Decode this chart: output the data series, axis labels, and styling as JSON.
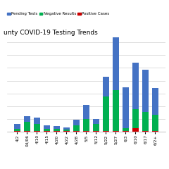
{
  "title": "unty COVID-19 Testing Trends",
  "categories": [
    "4/2",
    "04/06",
    "4/10",
    "4/15",
    "4/20",
    "4/22",
    "4/28",
    "5/5",
    "5/12",
    "5/22",
    "5/27",
    "6/3",
    "6/10",
    "6/17",
    "6/2+"
  ],
  "pending": [
    10,
    12,
    12,
    6,
    5,
    4,
    10,
    28,
    10,
    38,
    155,
    80,
    90,
    82,
    52
  ],
  "negative": [
    5,
    18,
    15,
    5,
    5,
    3,
    12,
    24,
    14,
    68,
    80,
    6,
    38,
    38,
    32
  ],
  "positive": [
    1,
    1,
    1,
    1,
    1,
    1,
    1,
    1,
    1,
    1,
    1,
    1,
    7,
    1,
    1
  ],
  "colors": {
    "pending": "#4472C4",
    "negative": "#00B050",
    "positive": "#CC0000"
  },
  "legend_labels": [
    "Pending Tests",
    "Negative Results",
    "Positive Cases"
  ],
  "background_color": "#FFFFFF",
  "grid_color": "#D0D0D0",
  "ylim": [
    0,
    185
  ],
  "figsize": [
    2.4,
    2.4
  ],
  "dpi": 100
}
